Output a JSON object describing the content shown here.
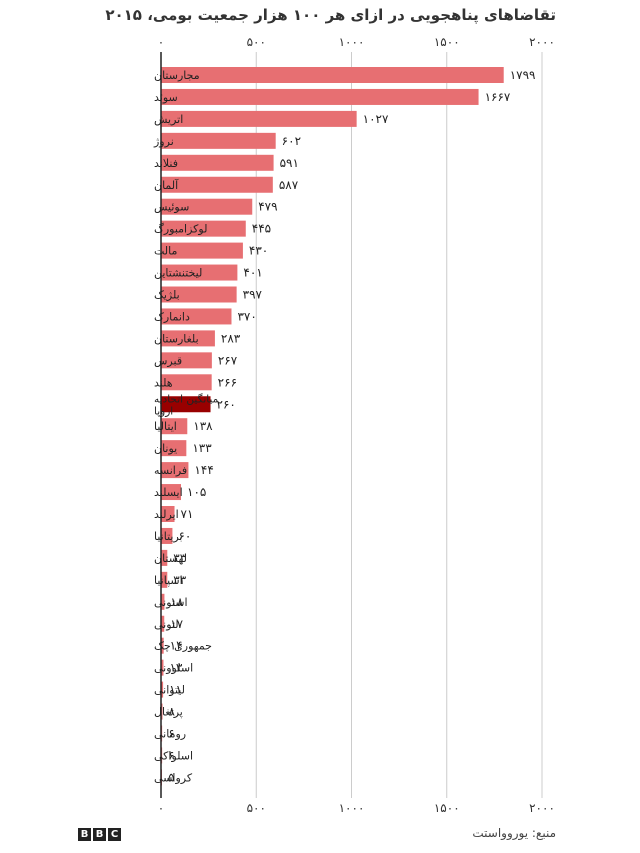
{
  "title": "تقاضاهای پناهجویی در ازای هر ۱۰۰ هزار جمعیت بومی، ۲۰۱۵",
  "source": "منبع: یوروواستت",
  "logo_letters": [
    "B",
    "B",
    "C"
  ],
  "colors": {
    "bar": "#e76f72",
    "highlight": "#990000",
    "grid": "#cccccc",
    "axis": "#222222"
  },
  "chart_data": {
    "type": "bar",
    "orientation": "horizontal",
    "xlim": [
      0,
      2000
    ],
    "ticks": [
      0,
      500,
      1000,
      1500,
      2000
    ],
    "tick_labels": [
      "۰",
      "۵۰۰",
      "۱۰۰۰",
      "۱۵۰۰",
      "۲۰۰۰"
    ],
    "grid": true,
    "highlight_category": "میانگین اتحادیه اروپا",
    "categories": [
      "مجارستان",
      "سوئد",
      "اتریش",
      "نروژ",
      "فنلاند",
      "آلمان",
      "سوئیس",
      "لوکزامبورگ",
      "مالت",
      "لیختنشتاین",
      "بلژیک",
      "دانمارک",
      "بلغارستان",
      "قبرس",
      "هلند",
      "میانگین اتحادیه اروپا",
      "ایتالیا",
      "یونان",
      "فرانسه",
      "ایسلند",
      "ایرلند",
      "بریتانیا",
      "لهستان",
      "اسپانیا",
      "استونی",
      "لتونی",
      "جمهوری چک",
      "اسلوونی",
      "لیتوانی",
      "پرتغال",
      "رومانی",
      "اسلواکی",
      "کرواسی"
    ],
    "values": [
      1799,
      1667,
      1027,
      602,
      591,
      587,
      479,
      445,
      430,
      401,
      397,
      370,
      283,
      267,
      266,
      260,
      138,
      133,
      144,
      105,
      71,
      60,
      33,
      33,
      18,
      17,
      14,
      13,
      11,
      8,
      6,
      6,
      5
    ],
    "value_labels": [
      "۱۷۹۹",
      "۱۶۶۷",
      "۱۰۲۷",
      "۶۰۲",
      "۵۹۱",
      "۵۸۷",
      "۴۷۹",
      "۴۴۵",
      "۴۳۰",
      "۴۰۱",
      "۳۹۷",
      "۳۷۰",
      "۲۸۳",
      "۲۶۷",
      "۲۶۶",
      "۲۶۰",
      "۱۳۸",
      "۱۳۳",
      "۱۴۴",
      "۱۰۵",
      "۷۱",
      "۶۰",
      "۳۳",
      "۳۳",
      "۱۸",
      "۱۷",
      "۱۴",
      "۱۳",
      "۱۱",
      "۸",
      "۶",
      "۶",
      "۵"
    ]
  }
}
